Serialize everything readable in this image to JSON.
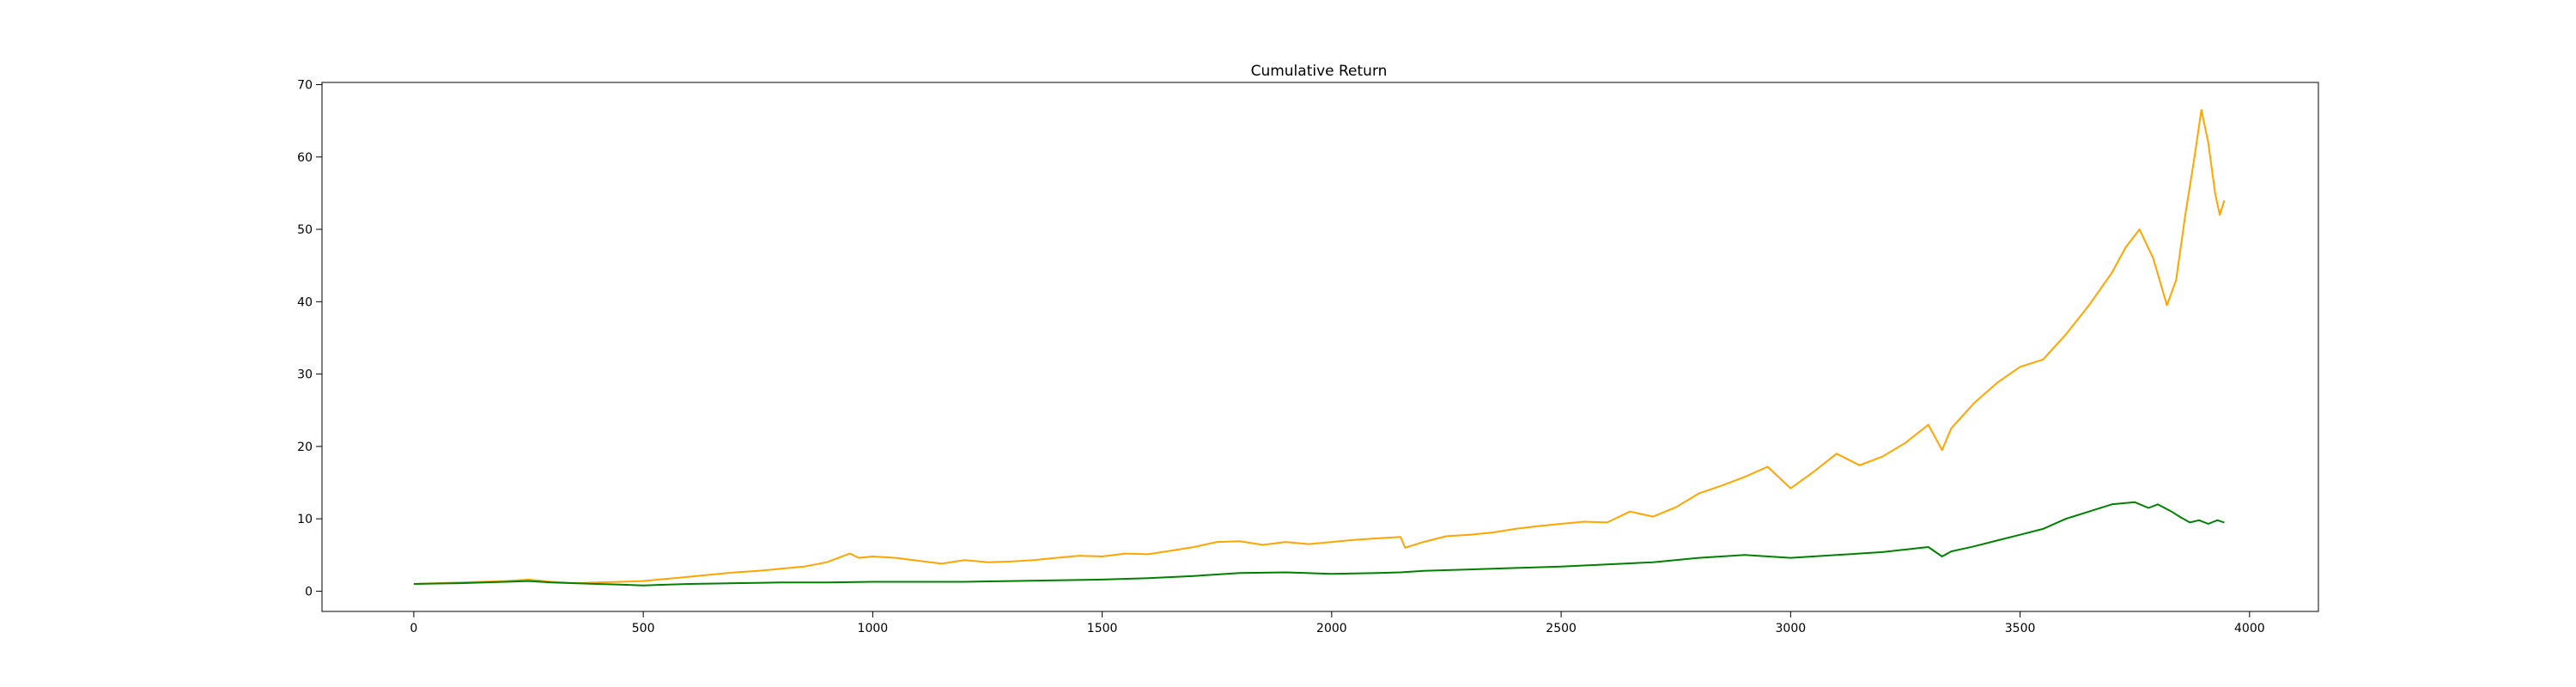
{
  "chart_data": {
    "type": "line",
    "title": "Cumulative Return",
    "xlabel": "",
    "ylabel": "",
    "xlim": [
      -200,
      4150
    ],
    "ylim": [
      -2.8,
      70.3
    ],
    "xticks": [
      0,
      500,
      1000,
      1500,
      2000,
      2500,
      3000,
      3500,
      4000
    ],
    "yticks": [
      0,
      10,
      20,
      30,
      40,
      50,
      60,
      70
    ],
    "grid": false,
    "legend": "none",
    "series": [
      {
        "color": "#ffa500",
        "x": [
          0,
          100,
          200,
          250,
          300,
          350,
          400,
          450,
          500,
          550,
          600,
          650,
          700,
          750,
          800,
          850,
          900,
          950,
          970,
          1000,
          1050,
          1100,
          1150,
          1200,
          1250,
          1300,
          1350,
          1400,
          1450,
          1500,
          1550,
          1600,
          1650,
          1700,
          1750,
          1800,
          1850,
          1900,
          1950,
          2000,
          2050,
          2100,
          2150,
          2160,
          2200,
          2250,
          2300,
          2350,
          2400,
          2450,
          2500,
          2550,
          2600,
          2650,
          2700,
          2750,
          2800,
          2850,
          2900,
          2950,
          2970,
          3000,
          3050,
          3100,
          3150,
          3200,
          3250,
          3300,
          3330,
          3350,
          3400,
          3450,
          3500,
          3550,
          3600,
          3650,
          3700,
          3730,
          3760,
          3790,
          3820,
          3840,
          3860,
          3880,
          3895,
          3910,
          3925,
          3935,
          3945
        ],
        "y": [
          1.0,
          1.2,
          1.4,
          1.6,
          1.3,
          1.1,
          1.2,
          1.3,
          1.4,
          1.7,
          2.0,
          2.3,
          2.6,
          2.8,
          3.1,
          3.4,
          4.0,
          5.2,
          4.6,
          4.8,
          4.6,
          4.2,
          3.8,
          4.3,
          4.0,
          4.1,
          4.3,
          4.6,
          4.9,
          4.8,
          5.2,
          5.1,
          5.6,
          6.1,
          6.8,
          6.9,
          6.4,
          6.8,
          6.5,
          6.8,
          7.1,
          7.3,
          7.5,
          6.0,
          6.8,
          7.6,
          7.8,
          8.1,
          8.6,
          9.0,
          9.3,
          9.6,
          9.5,
          11.0,
          10.3,
          11.6,
          13.5,
          14.6,
          15.8,
          17.2,
          16.0,
          14.2,
          16.5,
          19.0,
          17.4,
          18.6,
          20.5,
          23.0,
          19.5,
          22.5,
          26.0,
          28.8,
          31.0,
          32.0,
          35.5,
          39.5,
          44.0,
          47.5,
          50.0,
          46.0,
          39.5,
          43.0,
          52.0,
          60.0,
          66.5,
          62.0,
          55.0,
          52.0,
          54.0
        ]
      },
      {
        "color": "#008000",
        "x": [
          0,
          100,
          200,
          250,
          300,
          350,
          400,
          450,
          500,
          600,
          700,
          800,
          900,
          1000,
          1100,
          1200,
          1300,
          1400,
          1500,
          1600,
          1700,
          1800,
          1900,
          2000,
          2100,
          2150,
          2200,
          2300,
          2400,
          2500,
          2600,
          2700,
          2800,
          2900,
          3000,
          3100,
          3200,
          3300,
          3330,
          3350,
          3400,
          3450,
          3500,
          3550,
          3600,
          3650,
          3700,
          3750,
          3780,
          3800,
          3830,
          3850,
          3870,
          3890,
          3910,
          3930,
          3945
        ],
        "y": [
          1.0,
          1.1,
          1.3,
          1.4,
          1.2,
          1.1,
          1.0,
          0.9,
          0.8,
          1.0,
          1.1,
          1.2,
          1.2,
          1.3,
          1.3,
          1.3,
          1.4,
          1.5,
          1.6,
          1.8,
          2.1,
          2.5,
          2.6,
          2.4,
          2.5,
          2.6,
          2.8,
          3.0,
          3.2,
          3.4,
          3.7,
          4.0,
          4.6,
          5.0,
          4.6,
          5.0,
          5.4,
          6.1,
          4.8,
          5.5,
          6.2,
          7.0,
          7.8,
          8.6,
          10.0,
          11.0,
          12.0,
          12.3,
          11.5,
          12.0,
          11.0,
          10.2,
          9.5,
          9.8,
          9.3,
          9.8,
          9.5
        ]
      }
    ]
  }
}
